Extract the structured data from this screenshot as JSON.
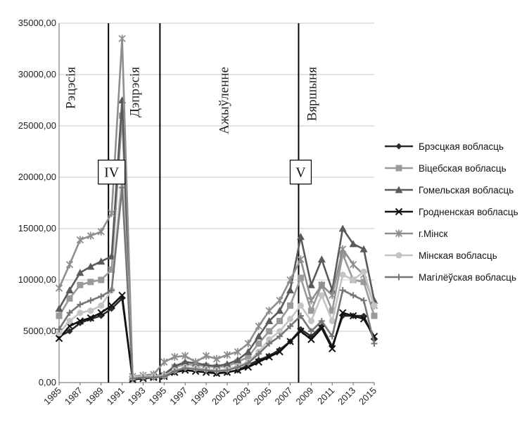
{
  "chart_data": {
    "type": "line",
    "title": "",
    "xlabel": "",
    "ylabel": "",
    "ylim": [
      0,
      35000
    ],
    "yticks": [
      "0,00",
      "5000,00",
      "10000,00",
      "15000,00",
      "20000,00",
      "25000,00",
      "30000,00",
      "35000,00"
    ],
    "xticks": [
      "1985",
      "1987",
      "1989",
      "1991",
      "1993",
      "1995",
      "1997",
      "1999",
      "2001",
      "2003",
      "2005",
      "2007",
      "2009",
      "2011",
      "2013",
      "2015"
    ],
    "x": [
      1985,
      1986,
      1987,
      1988,
      1989,
      1990,
      1991,
      1992,
      1993,
      1994,
      1995,
      1996,
      1997,
      1998,
      1999,
      2000,
      2001,
      2002,
      2003,
      2004,
      2005,
      2006,
      2007,
      2008,
      2009,
      2010,
      2011,
      2012,
      2013,
      2014,
      2015
    ],
    "grid": "horizontal",
    "legend_position": "right",
    "phases": [
      {
        "label": "Рэцэсія",
        "x": 1986.2
      },
      {
        "label": "Дэпрэсія",
        "x": 1992.3
      },
      {
        "label": "Ажыўленне",
        "x": 2000.8
      },
      {
        "label": "Вяршыня",
        "x": 2009.2
      }
    ],
    "phase_lines": [
      1989.7,
      1994.6,
      2007.8
    ],
    "boxes": [
      {
        "label": "IV",
        "x": 1990.0,
        "y": 20500
      },
      {
        "label": "V",
        "x": 2008.0,
        "y": 20500
      }
    ],
    "series": [
      {
        "name": "Брэсцкая вобласць",
        "color": "#2b2b2b",
        "marker": "diamond",
        "values": [
          4500,
          5000,
          5800,
          6200,
          6500,
          7200,
          8200,
          400,
          500,
          500,
          600,
          1000,
          1300,
          1500,
          1200,
          900,
          1000,
          1200,
          1700,
          2200,
          2600,
          3200,
          4000,
          5200,
          4500,
          5500,
          3500,
          6500,
          6500,
          6500,
          4200
        ]
      },
      {
        "name": "Віцебская вобласць",
        "color": "#9a9a9a",
        "marker": "square",
        "values": [
          6500,
          8200,
          9500,
          9800,
          10000,
          11000,
          26000,
          400,
          500,
          600,
          700,
          1500,
          1800,
          1700,
          1600,
          1500,
          1600,
          2000,
          2500,
          3800,
          5000,
          6000,
          7500,
          10200,
          7000,
          9500,
          7000,
          12500,
          10000,
          9800,
          6500
        ]
      },
      {
        "name": "Гомельская вобласць",
        "color": "#5a5a5a",
        "marker": "triangle",
        "values": [
          7200,
          9000,
          10700,
          11300,
          11800,
          12300,
          27500,
          500,
          600,
          600,
          800,
          1600,
          2000,
          1900,
          1700,
          1600,
          1800,
          2200,
          3000,
          4500,
          6000,
          7000,
          9000,
          14200,
          9500,
          12000,
          9000,
          15000,
          13500,
          13000,
          8000
        ]
      },
      {
        "name": "Гродненская вобласць",
        "color": "#111111",
        "marker": "x",
        "values": [
          4300,
          5500,
          6000,
          6300,
          6800,
          7500,
          8500,
          300,
          400,
          500,
          600,
          1000,
          1200,
          1100,
          1000,
          900,
          1000,
          1200,
          1500,
          2000,
          2500,
          3000,
          4000,
          5000,
          4200,
          5300,
          3300,
          6800,
          6500,
          6200,
          4500
        ]
      },
      {
        "name": "г.Мінск",
        "color": "#8e8e8e",
        "marker": "asterisk",
        "values": [
          9200,
          11500,
          13900,
          14300,
          14700,
          16500,
          33500,
          600,
          700,
          800,
          2000,
          2500,
          2600,
          2000,
          2600,
          2300,
          2700,
          3000,
          3800,
          5500,
          7000,
          8000,
          10000,
          12000,
          8000,
          9500,
          8500,
          13000,
          11500,
          10500,
          7500
        ]
      },
      {
        "name": "Мінская вобласць",
        "color": "#c4c4c4",
        "marker": "circle",
        "values": [
          4800,
          6000,
          6800,
          7000,
          7500,
          9000,
          20500,
          500,
          600,
          600,
          700,
          1200,
          1500,
          1400,
          1300,
          1200,
          1300,
          1600,
          2000,
          3000,
          4200,
          5000,
          6200,
          7500,
          6000,
          8500,
          6000,
          10500,
          10000,
          10800,
          7500
        ]
      },
      {
        "name": "Магілёўская вобласць",
        "color": "#767676",
        "marker": "plus",
        "values": [
          5200,
          6800,
          7600,
          8000,
          8400,
          9000,
          19000,
          400,
          500,
          500,
          600,
          1100,
          1400,
          1300,
          1200,
          1100,
          1200,
          1500,
          1900,
          2800,
          3800,
          4500,
          5500,
          6500,
          5000,
          6000,
          4500,
          9000,
          8500,
          8000,
          3800
        ]
      }
    ]
  }
}
